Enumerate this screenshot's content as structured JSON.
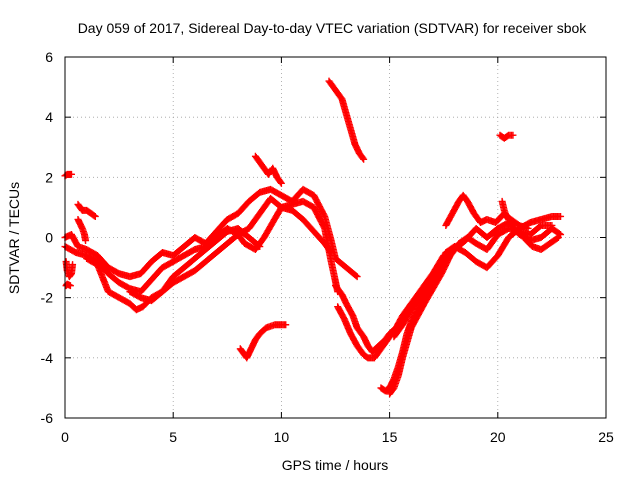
{
  "chart_data": {
    "type": "scatter",
    "title": "Day 059 of 2017, Sidereal Day-to-day VTEC variation (SDTVAR) for receiver sbok",
    "xlabel": "GPS time / hours",
    "ylabel": "SDTVAR / TECUs",
    "xlim": [
      0,
      25
    ],
    "ylim": [
      -6,
      6
    ],
    "x_ticks": [
      0,
      5,
      10,
      15,
      20,
      25
    ],
    "y_ticks": [
      -6,
      -4,
      -2,
      0,
      2,
      4,
      6
    ],
    "x_tick_labels": [
      "0",
      "5",
      "10",
      "15",
      "20",
      "25"
    ],
    "y_tick_labels": [
      "-6",
      "-4",
      "-2",
      "0",
      "2",
      "4",
      "6"
    ],
    "grid": true,
    "marker": "+",
    "series_color": "#ff0000",
    "traces": [
      [
        [
          0.0,
          0.0
        ],
        [
          0.3,
          0.1
        ],
        [
          0.6,
          -0.3
        ],
        [
          1.0,
          -0.4
        ],
        [
          1.5,
          -0.6
        ],
        [
          2.0,
          -1.0
        ],
        [
          2.5,
          -1.2
        ],
        [
          3.0,
          -1.3
        ],
        [
          3.5,
          -1.2
        ],
        [
          4.0,
          -0.8
        ],
        [
          4.5,
          -0.5
        ],
        [
          5.0,
          -0.6
        ],
        [
          5.5,
          -0.3
        ],
        [
          6.0,
          0.0
        ],
        [
          6.5,
          -0.2
        ],
        [
          7.0,
          0.2
        ],
        [
          7.5,
          0.6
        ],
        [
          8.0,
          0.8
        ],
        [
          8.5,
          1.2
        ],
        [
          9.0,
          1.5
        ],
        [
          9.5,
          1.6
        ],
        [
          10.0,
          1.4
        ],
        [
          10.5,
          1.2
        ],
        [
          11.0,
          1.6
        ],
        [
          11.5,
          1.4
        ],
        [
          12.0,
          0.7
        ],
        [
          12.3,
          -0.1
        ],
        [
          12.5,
          -0.7
        ],
        [
          13.0,
          -1.0
        ],
        [
          13.5,
          -1.3
        ]
      ],
      [
        [
          0.0,
          -0.3
        ],
        [
          0.5,
          -0.5
        ],
        [
          1.0,
          -0.6
        ],
        [
          1.5,
          -0.8
        ],
        [
          2.0,
          -1.2
        ],
        [
          2.5,
          -1.5
        ],
        [
          3.0,
          -1.7
        ],
        [
          3.5,
          -1.8
        ],
        [
          4.0,
          -1.4
        ],
        [
          4.5,
          -1.0
        ],
        [
          5.0,
          -0.8
        ],
        [
          5.5,
          -0.6
        ],
        [
          6.0,
          -0.4
        ],
        [
          6.5,
          -0.3
        ],
        [
          7.0,
          0.0
        ],
        [
          7.5,
          0.3
        ],
        [
          8.0,
          0.1
        ],
        [
          8.5,
          0.3
        ],
        [
          9.0,
          0.8
        ],
        [
          9.5,
          1.3
        ],
        [
          10.0,
          1.0
        ],
        [
          10.5,
          1.1
        ],
        [
          11.0,
          1.2
        ],
        [
          11.5,
          1.0
        ],
        [
          12.0,
          0.3
        ],
        [
          12.3,
          -0.8
        ],
        [
          12.6,
          -1.8
        ]
      ],
      [
        [
          1.0,
          -0.7
        ],
        [
          1.5,
          -0.9
        ],
        [
          2.0,
          -1.8
        ],
        [
          2.5,
          -2.0
        ],
        [
          3.0,
          -2.2
        ],
        [
          3.3,
          -2.4
        ],
        [
          3.6,
          -2.3
        ],
        [
          4.0,
          -2.0
        ],
        [
          4.5,
          -1.8
        ],
        [
          5.0,
          -1.5
        ],
        [
          5.5,
          -1.3
        ],
        [
          6.0,
          -1.1
        ],
        [
          6.5,
          -0.8
        ],
        [
          7.0,
          -0.5
        ],
        [
          7.5,
          -0.2
        ],
        [
          8.0,
          0.1
        ],
        [
          8.3,
          -0.2
        ],
        [
          8.8,
          -0.4
        ],
        [
          9.2,
          0.0
        ],
        [
          9.6,
          0.5
        ],
        [
          10.0,
          1.0
        ],
        [
          10.5,
          0.9
        ],
        [
          11.0,
          0.6
        ],
        [
          11.5,
          0.2
        ],
        [
          12.0,
          -0.2
        ],
        [
          12.3,
          -0.5
        ]
      ],
      [
        [
          3.0,
          -1.8
        ],
        [
          3.5,
          -2.0
        ],
        [
          4.0,
          -2.1
        ],
        [
          4.5,
          -1.8
        ],
        [
          5.0,
          -1.3
        ],
        [
          5.5,
          -1.0
        ],
        [
          6.0,
          -0.7
        ],
        [
          6.5,
          -0.4
        ],
        [
          7.0,
          -0.1
        ],
        [
          7.5,
          0.2
        ],
        [
          8.0,
          0.3
        ],
        [
          8.5,
          0.0
        ],
        [
          9.0,
          -0.3
        ]
      ],
      [
        [
          0.05,
          -0.8
        ],
        [
          0.1,
          -1.1
        ],
        [
          0.2,
          -1.3
        ],
        [
          0.3,
          -1.2
        ],
        [
          0.35,
          -0.9
        ]
      ],
      [
        [
          0.05,
          -1.6
        ],
        [
          0.1,
          -1.55
        ],
        [
          0.25,
          -1.6
        ]
      ],
      [
        [
          0.0,
          2.05
        ],
        [
          0.1,
          2.1
        ],
        [
          0.2,
          2.1
        ],
        [
          0.3,
          2.1
        ]
      ],
      [
        [
          0.6,
          1.1
        ],
        [
          0.8,
          0.9
        ],
        [
          1.0,
          0.9
        ],
        [
          1.2,
          0.8
        ],
        [
          1.4,
          0.7
        ]
      ],
      [
        [
          0.6,
          0.6
        ],
        [
          0.8,
          0.3
        ],
        [
          0.9,
          0.1
        ],
        [
          0.95,
          -0.1
        ]
      ],
      [
        [
          8.8,
          2.7
        ],
        [
          9.0,
          2.5
        ],
        [
          9.2,
          2.3
        ],
        [
          9.4,
          2.1
        ],
        [
          9.6,
          2.3
        ],
        [
          9.8,
          2.0
        ],
        [
          10.0,
          1.8
        ]
      ],
      [
        [
          8.1,
          -3.7
        ],
        [
          8.2,
          -3.8
        ],
        [
          8.4,
          -4.0
        ],
        [
          8.6,
          -3.7
        ],
        [
          8.8,
          -3.4
        ],
        [
          9.0,
          -3.2
        ],
        [
          9.3,
          -3.0
        ],
        [
          9.7,
          -2.9
        ],
        [
          10.0,
          -2.9
        ],
        [
          10.2,
          -2.9
        ]
      ],
      [
        [
          12.2,
          5.2
        ],
        [
          12.5,
          4.9
        ],
        [
          12.8,
          4.6
        ],
        [
          13.0,
          4.1
        ],
        [
          13.2,
          3.6
        ],
        [
          13.4,
          3.1
        ],
        [
          13.6,
          2.8
        ],
        [
          13.8,
          2.6
        ]
      ],
      [
        [
          12.5,
          -1.6
        ],
        [
          12.8,
          -1.9
        ],
        [
          13.0,
          -2.2
        ],
        [
          13.3,
          -2.6
        ],
        [
          13.5,
          -3.0
        ],
        [
          13.8,
          -3.3
        ],
        [
          14.0,
          -3.6
        ],
        [
          14.2,
          -3.8
        ],
        [
          14.5,
          -3.6
        ],
        [
          14.8,
          -3.4
        ],
        [
          15.0,
          -3.2
        ],
        [
          15.3,
          -3.0
        ],
        [
          15.6,
          -2.6
        ],
        [
          16.0,
          -2.2
        ],
        [
          16.5,
          -1.7
        ],
        [
          17.0,
          -1.2
        ],
        [
          17.5,
          -0.6
        ]
      ],
      [
        [
          12.6,
          -2.3
        ],
        [
          12.9,
          -2.7
        ],
        [
          13.2,
          -3.2
        ],
        [
          13.5,
          -3.6
        ],
        [
          13.8,
          -3.9
        ],
        [
          14.0,
          -4.0
        ],
        [
          14.3,
          -4.0
        ],
        [
          14.6,
          -3.7
        ],
        [
          15.0,
          -3.3
        ]
      ],
      [
        [
          14.6,
          -5.0
        ],
        [
          14.8,
          -5.1
        ],
        [
          15.0,
          -5.0
        ],
        [
          15.2,
          -4.7
        ],
        [
          15.4,
          -4.3
        ],
        [
          15.6,
          -3.8
        ],
        [
          15.8,
          -3.2
        ],
        [
          16.0,
          -2.8
        ],
        [
          16.3,
          -2.4
        ],
        [
          16.6,
          -1.9
        ],
        [
          17.0,
          -1.4
        ],
        [
          17.3,
          -1.0
        ],
        [
          17.6,
          -0.5
        ],
        [
          18.0,
          -0.3
        ],
        [
          18.5,
          -0.5
        ],
        [
          19.0,
          -0.8
        ],
        [
          19.5,
          -1.0
        ],
        [
          20.0,
          -0.6
        ],
        [
          20.5,
          0.0
        ],
        [
          21.0,
          0.3
        ],
        [
          21.5,
          0.5
        ],
        [
          22.0,
          0.6
        ],
        [
          22.5,
          0.7
        ],
        [
          22.9,
          0.7
        ]
      ],
      [
        [
          15.0,
          -5.2
        ],
        [
          15.2,
          -5.0
        ],
        [
          15.4,
          -4.6
        ],
        [
          15.6,
          -4.0
        ],
        [
          15.8,
          -3.5
        ],
        [
          16.0,
          -3.0
        ],
        [
          16.3,
          -2.6
        ],
        [
          16.6,
          -2.2
        ],
        [
          17.0,
          -1.7
        ],
        [
          17.4,
          -1.2
        ],
        [
          17.8,
          -0.6
        ],
        [
          18.2,
          -0.2
        ],
        [
          18.6,
          0.0
        ],
        [
          19.0,
          -0.2
        ],
        [
          19.5,
          -0.4
        ],
        [
          20.0,
          0.1
        ],
        [
          20.5,
          0.3
        ],
        [
          21.0,
          0.2
        ],
        [
          21.5,
          0.1
        ],
        [
          22.0,
          0.4
        ],
        [
          22.5,
          0.4
        ]
      ],
      [
        [
          15.2,
          -3.3
        ],
        [
          15.6,
          -2.9
        ],
        [
          16.0,
          -2.4
        ],
        [
          16.5,
          -1.9
        ],
        [
          17.0,
          -1.4
        ],
        [
          17.5,
          -0.9
        ],
        [
          18.0,
          -0.4
        ],
        [
          18.5,
          -0.1
        ],
        [
          19.0,
          0.3
        ],
        [
          19.5,
          0.0
        ],
        [
          20.0,
          0.3
        ],
        [
          20.5,
          0.5
        ],
        [
          21.0,
          0.1
        ],
        [
          21.5,
          -0.1
        ],
        [
          22.0,
          0.0
        ],
        [
          22.5,
          0.3
        ],
        [
          22.9,
          0.1
        ]
      ],
      [
        [
          17.6,
          0.4
        ],
        [
          17.9,
          0.8
        ],
        [
          18.2,
          1.2
        ],
        [
          18.4,
          1.4
        ],
        [
          18.6,
          1.2
        ],
        [
          18.9,
          0.8
        ],
        [
          19.2,
          0.5
        ],
        [
          19.5,
          0.6
        ],
        [
          19.9,
          0.5
        ],
        [
          20.3,
          0.8
        ],
        [
          20.6,
          0.6
        ],
        [
          21.0,
          0.4
        ],
        [
          21.4,
          0.3
        ]
      ],
      [
        [
          20.1,
          3.4
        ],
        [
          20.3,
          3.3
        ],
        [
          20.5,
          3.4
        ],
        [
          20.7,
          3.4
        ]
      ],
      [
        [
          20.2,
          1.2
        ],
        [
          20.3,
          0.9
        ],
        [
          20.4,
          0.7
        ],
        [
          20.5,
          0.6
        ]
      ],
      [
        [
          21.2,
          0.0
        ],
        [
          21.6,
          -0.3
        ],
        [
          22.0,
          -0.4
        ],
        [
          22.4,
          -0.2
        ],
        [
          22.8,
          0.0
        ]
      ]
    ]
  }
}
